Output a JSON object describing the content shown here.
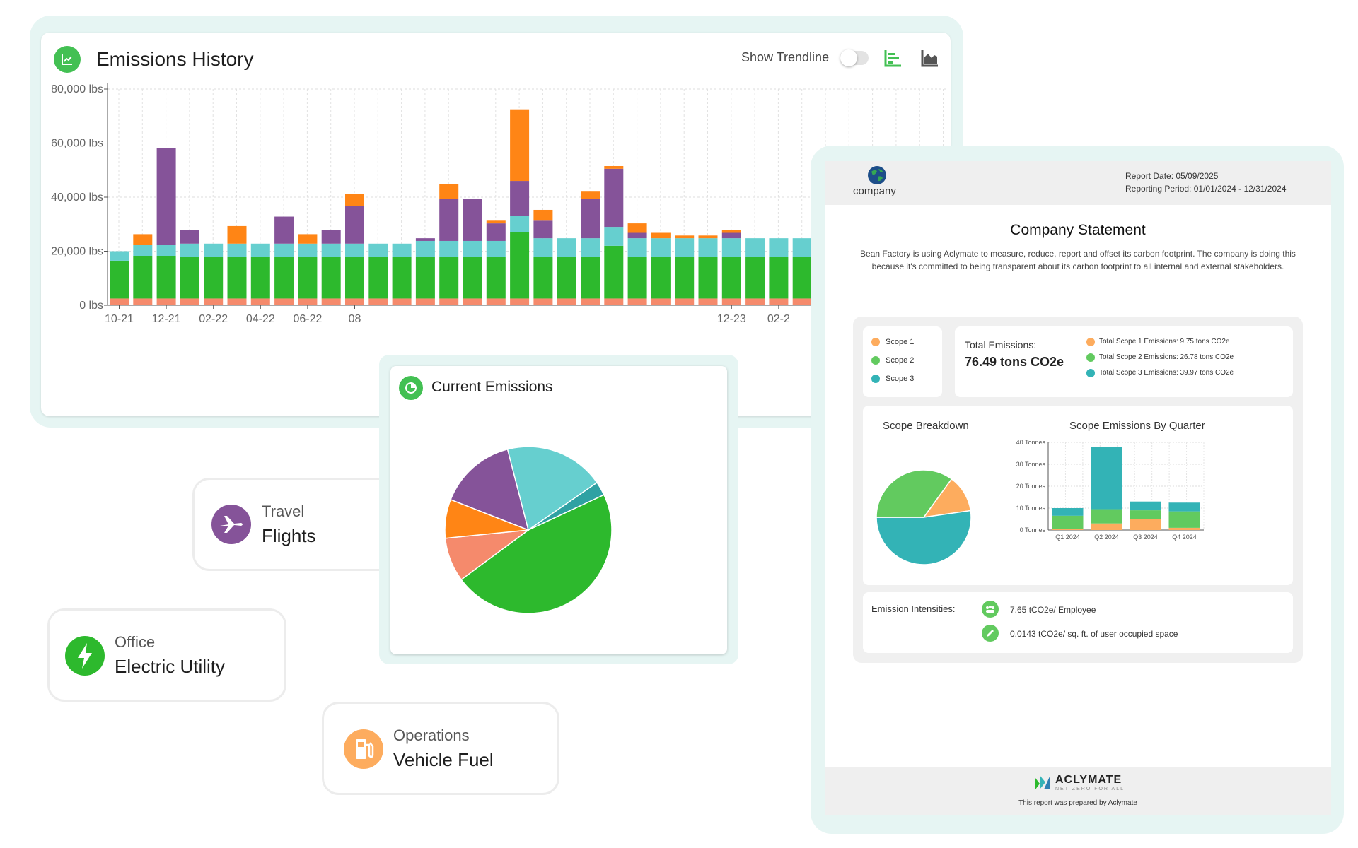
{
  "colors": {
    "accent_green": "#43c053",
    "bar_scope_red": "#f58a6c",
    "bar_green": "#2db92d",
    "bar_cyan": "#66cfcf",
    "bar_purple": "#855399",
    "bar_orange": "#ff8515",
    "report_orange": "#fdac5e",
    "report_green": "#62ca5f",
    "report_teal": "#33b3b6",
    "panel_bg": "#f0f0f0",
    "frame_bg": "#e6f5f3"
  },
  "history": {
    "title": "Emissions History",
    "icon": "line-chart-icon",
    "trendline_label": "Show Trendline",
    "trendline_on": false,
    "view_icons": [
      "bar-chart-icon",
      "area-chart-icon"
    ]
  },
  "current": {
    "title": "Current Emissions",
    "icon": "pie-chart-icon"
  },
  "categories": [
    {
      "group": "Travel",
      "name": "Flights",
      "icon": "airplane-icon",
      "color": "#855399"
    },
    {
      "group": "Office",
      "name": "Electric Utility",
      "icon": "lightning-icon",
      "color": "#2db92d"
    },
    {
      "group": "Operations",
      "name": "Vehicle Fuel",
      "icon": "fuel-pump-icon",
      "color": "#fdac5e"
    }
  ],
  "report": {
    "logo_text": "company",
    "report_date": "Report Date: 05/09/2025",
    "reporting_period": "Reporting Period: 01/01/2024 - 12/31/2024",
    "statement_title": "Company Statement",
    "statement_body": "Bean Factory is using Aclymate to measure, reduce, report and offset its carbon footprint. The company is doing this because it's committed to being transparent about its carbon footprint to all internal and external stakeholders.",
    "legend": [
      "Scope 1",
      "Scope 2",
      "Scope 3"
    ],
    "total_label": "Total Emissions:",
    "total_value": "76.49 tons CO2e",
    "scope_totals": [
      "Total Scope 1 Emissions: 9.75 tons CO2e",
      "Total Scope 2 Emissions: 26.78 tons CO2e",
      "Total Scope 3 Emissions: 39.97 tons CO2e"
    ],
    "breakdown_title": "Scope Breakdown",
    "quarter_title": "Scope Emissions By Quarter",
    "intensities_label": "Emission Intensities:",
    "intensities": [
      {
        "icon": "people-icon",
        "text": "7.65 tCO2e/ Employee"
      },
      {
        "icon": "pencil-icon",
        "text": "0.0143 tCO2e/ sq. ft. of user occupied space"
      }
    ],
    "footer_brand": "ACLYMATE",
    "footer_tagline": "NET ZERO FOR ALL",
    "footer_note": "This report was prepared by Aclymate"
  },
  "chart_data": [
    {
      "type": "bar",
      "title": "Emissions History",
      "stacked": true,
      "ylim": [
        0,
        80000
      ],
      "yticks": [
        "0 lbs",
        "20,000 lbs",
        "40,000 lbs",
        "60,000 lbs",
        "80,000 lbs"
      ],
      "xtick_labels": [
        {
          "index": 0,
          "label": "10-21"
        },
        {
          "index": 2,
          "label": "12-21"
        },
        {
          "index": 4,
          "label": "02-22"
        },
        {
          "index": 6,
          "label": "04-22"
        },
        {
          "index": 8,
          "label": "06-22"
        },
        {
          "index": 10,
          "label": "08"
        },
        {
          "index": 26,
          "label": "12-23"
        },
        {
          "index": 28,
          "label": "02-2"
        }
      ],
      "grid": true,
      "series": [
        {
          "color": "#f58a6c",
          "values": [
            2500,
            2500,
            2500,
            2500,
            2500,
            2500,
            2500,
            2500,
            2500,
            2500,
            2500,
            2500,
            2500,
            2500,
            2500,
            2500,
            2500,
            2500,
            2500,
            2500,
            2500,
            2500,
            2500,
            2500,
            2500,
            2500,
            2500,
            2500,
            2500,
            2500
          ]
        },
        {
          "color": "#2db92d",
          "values": [
            14000,
            15800,
            15800,
            15300,
            15300,
            15300,
            15300,
            15300,
            15300,
            15300,
            15300,
            15300,
            15300,
            15300,
            15300,
            15300,
            15300,
            24500,
            15300,
            15300,
            15300,
            19500,
            15300,
            15300,
            15300,
            15300,
            15300,
            15300,
            15300,
            15300
          ]
        },
        {
          "color": "#66cfcf",
          "values": [
            3500,
            4000,
            4000,
            5000,
            5000,
            5000,
            5000,
            5000,
            5000,
            5000,
            5000,
            5000,
            5000,
            6000,
            6000,
            6000,
            6000,
            6000,
            7000,
            7000,
            7000,
            7000,
            7000,
            7000,
            7000,
            7000,
            7000,
            7000,
            7000,
            7000
          ]
        },
        {
          "color": "#855399",
          "values": [
            0,
            0,
            36000,
            5000,
            0,
            0,
            0,
            10000,
            0,
            5000,
            14000,
            0,
            0,
            1000,
            15500,
            15500,
            6500,
            13000,
            6500,
            0,
            14500,
            21500,
            2000,
            0,
            0,
            0,
            2000,
            0,
            0,
            0
          ]
        },
        {
          "color": "#ff8515",
          "values": [
            0,
            4000,
            0,
            0,
            0,
            6500,
            0,
            0,
            3500,
            0,
            4500,
            0,
            0,
            0,
            5500,
            0,
            1000,
            26500,
            4000,
            0,
            3000,
            1000,
            3500,
            2000,
            1000,
            1000,
            1000,
            0,
            0,
            0
          ]
        }
      ]
    },
    {
      "type": "pie",
      "title": "Current Emissions",
      "slices": [
        {
          "color": "#2db92d",
          "value": 45.4
        },
        {
          "color": "#f58a6c",
          "value": 8.3
        },
        {
          "color": "#ff8515",
          "value": 7.3
        },
        {
          "color": "#855399",
          "value": 14.6
        },
        {
          "color": "#66cfcf",
          "value": 18.8
        },
        {
          "color": "#2fa1a3",
          "value": 2.6
        }
      ]
    },
    {
      "type": "pie",
      "title": "Scope Breakdown",
      "slices": [
        {
          "name": "Scope 1",
          "color": "#fdac5e",
          "value": 9.75
        },
        {
          "name": "Scope 3",
          "color": "#33b3b6",
          "value": 39.97
        },
        {
          "name": "Scope 2",
          "color": "#62ca5f",
          "value": 26.78
        }
      ]
    },
    {
      "type": "bar",
      "title": "Scope Emissions By Quarter",
      "stacked": true,
      "categories": [
        "Q1 2024",
        "Q2 2024",
        "Q3 2024",
        "Q4 2024"
      ],
      "ylim": [
        0,
        40
      ],
      "yticks": [
        "0 Tonnes",
        "10 Tonnes",
        "20 Tonnes",
        "30 Tonnes",
        "40 Tonnes"
      ],
      "series": [
        {
          "name": "Scope 1",
          "color": "#fdac5e",
          "values": [
            0.5,
            3.0,
            5.0,
            1.0
          ]
        },
        {
          "name": "Scope 2",
          "color": "#62ca5f",
          "values": [
            6.0,
            6.5,
            4.0,
            7.5
          ]
        },
        {
          "name": "Scope 3",
          "color": "#33b3b6",
          "values": [
            3.5,
            28.5,
            4.0,
            4.0
          ]
        }
      ]
    }
  ]
}
